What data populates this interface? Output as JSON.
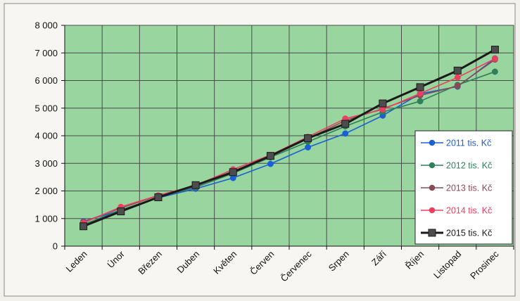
{
  "chart_data": {
    "type": "line",
    "categories": [
      "Leden",
      "Únor",
      "Březen",
      "Duben",
      "Květen",
      "Červen",
      "Červenec",
      "Srpen",
      "Září",
      "Říjen",
      "Listopad",
      "Prosinec"
    ],
    "ylim": [
      0,
      8000
    ],
    "yticks": [
      0,
      1000,
      2000,
      3000,
      4000,
      5000,
      6000,
      7000,
      8000
    ],
    "ytick_labels": [
      "0",
      "1 000",
      "2 000",
      "3 000",
      "4 000",
      "5 000",
      "6 000",
      "7 000",
      "8 000"
    ],
    "grid": true,
    "plot_background": "#99d59f",
    "grid_color": "#4a4a4a",
    "legend_position": "right",
    "series": [
      {
        "name": "2011 tis. Kč",
        "color": "#1a5fd6",
        "marker": "circle",
        "values": [
          900,
          1300,
          1750,
          2080,
          2470,
          2980,
          3580,
          4080,
          4730,
          5520,
          5780,
          6800
        ]
      },
      {
        "name": "2012 tis. Kč",
        "color": "#2f7f5a",
        "marker": "circle",
        "values": [
          780,
          1310,
          1770,
          2130,
          2640,
          3220,
          3780,
          4340,
          4860,
          5250,
          5840,
          6320
        ]
      },
      {
        "name": "2013 tis. Kč",
        "color": "#8a4a54",
        "marker": "circle",
        "values": [
          880,
          1380,
          1830,
          2170,
          2720,
          3250,
          3900,
          4550,
          4980,
          5460,
          5800,
          6760
        ]
      },
      {
        "name": "2014 tis. Kč",
        "color": "#ec3f60",
        "marker": "circle",
        "values": [
          840,
          1420,
          1840,
          2200,
          2780,
          3300,
          3960,
          4620,
          4950,
          5530,
          6110,
          6790
        ]
      },
      {
        "name": "2015 tis. Kč",
        "color": "#1a1a1a",
        "marker": "square",
        "values": [
          720,
          1260,
          1770,
          2210,
          2680,
          3270,
          3910,
          4430,
          5170,
          5760,
          6360,
          7120
        ]
      }
    ]
  }
}
